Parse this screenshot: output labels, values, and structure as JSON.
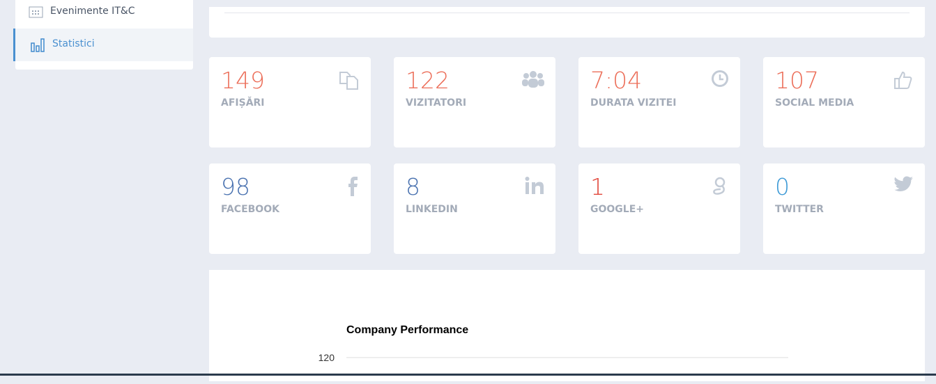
{
  "sidebar": {
    "items": [
      {
        "label": "Evenimente IT&C"
      },
      {
        "label": "Statistici"
      }
    ]
  },
  "stats": [
    {
      "value": "149",
      "label": "AFIȘĂRI"
    },
    {
      "value": "122",
      "label": "VIZITATORI"
    },
    {
      "value": "7:04",
      "label": "DURATA VIZITEI"
    },
    {
      "value": "107",
      "label": "SOCIAL MEDIA"
    },
    {
      "value": "98",
      "label": "FACEBOOK"
    },
    {
      "value": "8",
      "label": "LINKEDIN"
    },
    {
      "value": "1",
      "label": "GOOGLE+"
    },
    {
      "value": "0",
      "label": "TWITTER"
    }
  ],
  "chart": {
    "title": "Company Performance",
    "yticks": [
      120
    ]
  }
}
